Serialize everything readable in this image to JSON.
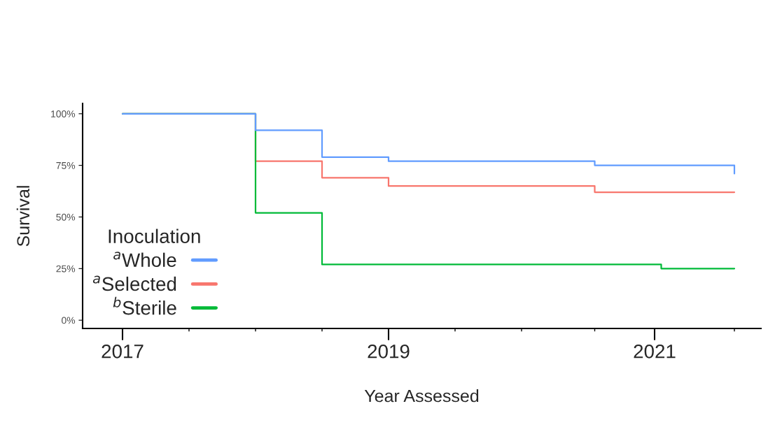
{
  "chart_data": {
    "type": "step",
    "xlabel": "Year Assessed",
    "ylabel": "Survival",
    "legend_title": "Inoculation",
    "series": [
      {
        "name": "$^{a}$Whole",
        "color": "#619cff",
        "x": [
          2017,
          2018,
          2018.5,
          2019,
          2020.55,
          2021.6
        ],
        "values": [
          100,
          92,
          79,
          77,
          75,
          71
        ]
      },
      {
        "name": "$^{a}$Selected",
        "color": "#f8766d",
        "x": [
          2017,
          2018,
          2018.5,
          2019,
          2020.55,
          2021.6
        ],
        "values": [
          100,
          77,
          69,
          65,
          62,
          62
        ]
      },
      {
        "name": "$^{b}$Sterile",
        "color": "#00ba38",
        "x": [
          2017,
          2018,
          2018.5,
          2021.05,
          2021.6
        ],
        "values": [
          100,
          52,
          27,
          25,
          25
        ]
      }
    ],
    "xlim": [
      2016.7,
      2021.8
    ],
    "xticks": [
      2017,
      {
        "value": 2017.5,
        "label": null
      },
      {
        "value": 2018,
        "label": null
      },
      {
        "value": 2018.5,
        "label": null
      },
      2019,
      {
        "value": 2019.5,
        "label": null
      },
      {
        "value": 2020,
        "label": null
      },
      {
        "value": 2020.55,
        "label": null
      },
      2021,
      {
        "value": 2021.6,
        "label": null
      }
    ],
    "ylim": [
      -4,
      105
    ],
    "yticks": [
      {
        "value": 0,
        "label": "0%"
      },
      {
        "value": 25,
        "label": "25%"
      },
      {
        "value": 50,
        "label": "50%"
      },
      {
        "value": 75,
        "label": "75%"
      },
      {
        "value": 100,
        "label": "100%"
      }
    ],
    "grid": false,
    "legend": "bottom left",
    "line_style": "solid"
  }
}
